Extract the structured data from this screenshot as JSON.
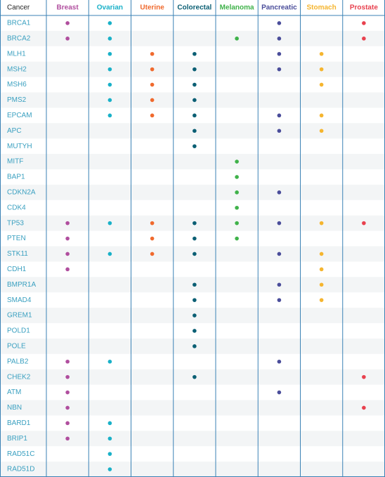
{
  "table": {
    "corner": "Cancer",
    "columns": [
      {
        "name": "Breast",
        "color": "#b04e9e"
      },
      {
        "name": "Ovarian",
        "color": "#1ab1c8"
      },
      {
        "name": "Uterine",
        "color": "#f06a2e"
      },
      {
        "name": "Colorectal",
        "color": "#0b5f74"
      },
      {
        "name": "Melanoma",
        "color": "#3fb24a"
      },
      {
        "name": "Pancreatic",
        "color": "#4a4d9a"
      },
      {
        "name": "Stomach",
        "color": "#f5b52f"
      },
      {
        "name": "Prostate",
        "color": "#e8414e"
      }
    ],
    "rows": [
      {
        "gene": "BRCA1",
        "marks": [
          true,
          true,
          false,
          false,
          false,
          true,
          false,
          true
        ]
      },
      {
        "gene": "BRCA2",
        "marks": [
          true,
          true,
          false,
          false,
          true,
          true,
          false,
          true
        ]
      },
      {
        "gene": "MLH1",
        "marks": [
          false,
          true,
          true,
          true,
          false,
          true,
          true,
          false
        ]
      },
      {
        "gene": "MSH2",
        "marks": [
          false,
          true,
          true,
          true,
          false,
          true,
          true,
          false
        ]
      },
      {
        "gene": "MSH6",
        "marks": [
          false,
          true,
          true,
          true,
          false,
          false,
          true,
          false
        ]
      },
      {
        "gene": "PMS2",
        "marks": [
          false,
          true,
          true,
          true,
          false,
          false,
          false,
          false
        ]
      },
      {
        "gene": "EPCAM",
        "marks": [
          false,
          true,
          true,
          true,
          false,
          true,
          true,
          false
        ]
      },
      {
        "gene": "APC",
        "marks": [
          false,
          false,
          false,
          true,
          false,
          true,
          true,
          false
        ]
      },
      {
        "gene": "MUTYH",
        "marks": [
          false,
          false,
          false,
          true,
          false,
          false,
          false,
          false
        ]
      },
      {
        "gene": "MITF",
        "marks": [
          false,
          false,
          false,
          false,
          true,
          false,
          false,
          false
        ]
      },
      {
        "gene": "BAP1",
        "marks": [
          false,
          false,
          false,
          false,
          true,
          false,
          false,
          false
        ]
      },
      {
        "gene": "CDKN2A",
        "marks": [
          false,
          false,
          false,
          false,
          true,
          true,
          false,
          false
        ]
      },
      {
        "gene": "CDK4",
        "marks": [
          false,
          false,
          false,
          false,
          true,
          false,
          false,
          false
        ]
      },
      {
        "gene": "TP53",
        "marks": [
          true,
          true,
          true,
          true,
          true,
          true,
          true,
          true
        ]
      },
      {
        "gene": "PTEN",
        "marks": [
          true,
          false,
          true,
          true,
          true,
          false,
          false,
          false
        ]
      },
      {
        "gene": "STK11",
        "marks": [
          true,
          true,
          true,
          true,
          false,
          true,
          true,
          false
        ]
      },
      {
        "gene": "CDH1",
        "marks": [
          true,
          false,
          false,
          false,
          false,
          false,
          true,
          false
        ]
      },
      {
        "gene": "BMPR1A",
        "marks": [
          false,
          false,
          false,
          true,
          false,
          true,
          true,
          false
        ]
      },
      {
        "gene": "SMAD4",
        "marks": [
          false,
          false,
          false,
          true,
          false,
          true,
          true,
          false
        ]
      },
      {
        "gene": "GREM1",
        "marks": [
          false,
          false,
          false,
          true,
          false,
          false,
          false,
          false
        ]
      },
      {
        "gene": "POLD1",
        "marks": [
          false,
          false,
          false,
          true,
          false,
          false,
          false,
          false
        ]
      },
      {
        "gene": "POLE",
        "marks": [
          false,
          false,
          false,
          true,
          false,
          false,
          false,
          false
        ]
      },
      {
        "gene": "PALB2",
        "marks": [
          true,
          true,
          false,
          false,
          false,
          true,
          false,
          false
        ]
      },
      {
        "gene": "CHEK2",
        "marks": [
          true,
          false,
          false,
          true,
          false,
          false,
          false,
          true
        ]
      },
      {
        "gene": "ATM",
        "marks": [
          true,
          false,
          false,
          false,
          false,
          true,
          false,
          false
        ]
      },
      {
        "gene": "NBN",
        "marks": [
          true,
          false,
          false,
          false,
          false,
          false,
          false,
          true
        ]
      },
      {
        "gene": "BARD1",
        "marks": [
          true,
          true,
          false,
          false,
          false,
          false,
          false,
          false
        ]
      },
      {
        "gene": "BRIP1",
        "marks": [
          true,
          true,
          false,
          false,
          false,
          false,
          false,
          false
        ]
      },
      {
        "gene": "RAD51C",
        "marks": [
          false,
          true,
          false,
          false,
          false,
          false,
          false,
          false
        ]
      },
      {
        "gene": "RAD51D",
        "marks": [
          false,
          true,
          false,
          false,
          false,
          false,
          false,
          false
        ]
      }
    ]
  }
}
